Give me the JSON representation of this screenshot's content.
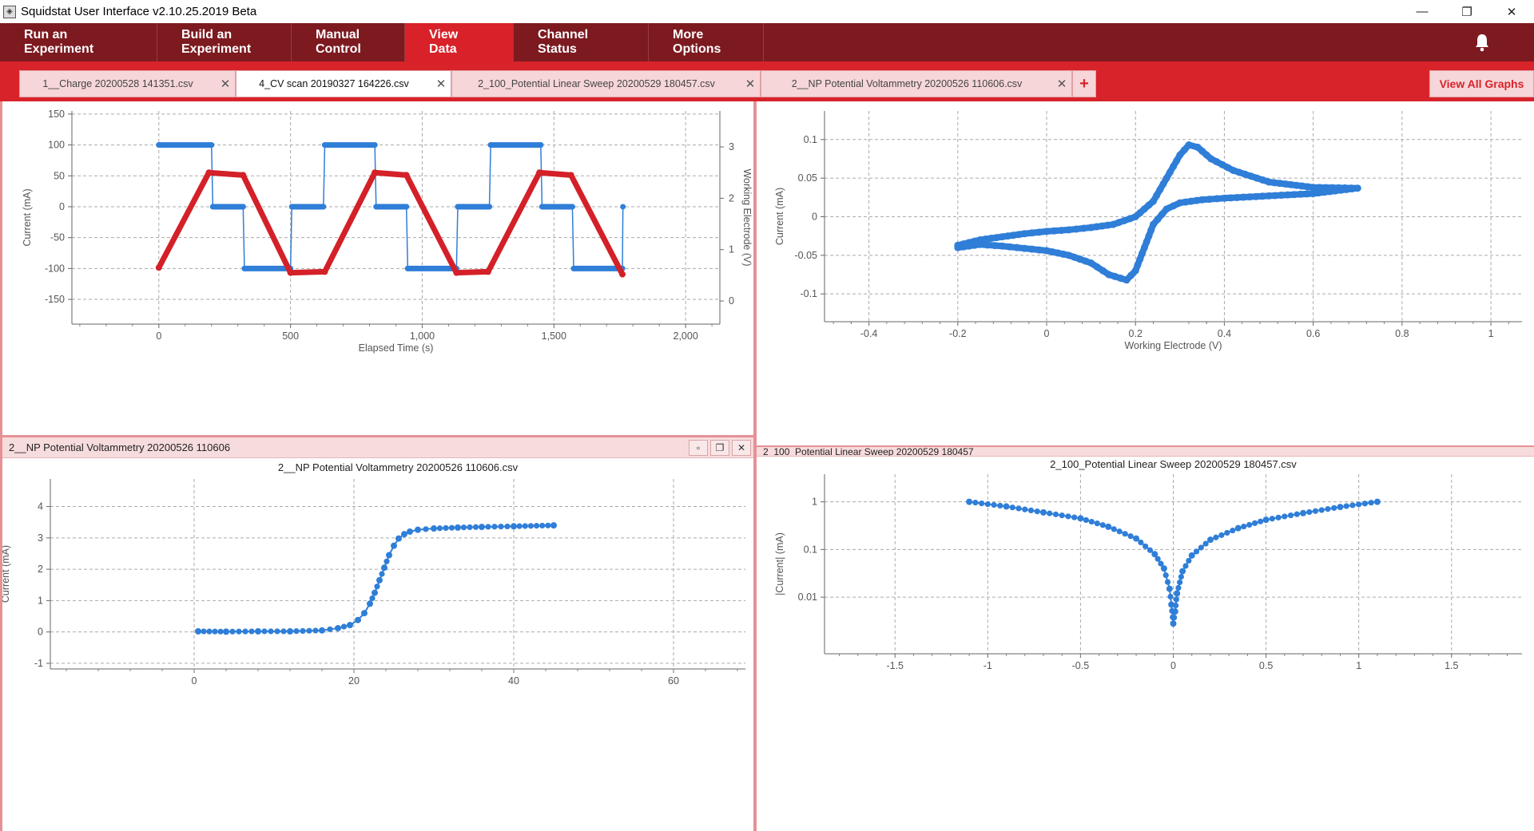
{
  "window": {
    "title": "Squidstat User Interface v2.10.25.2019 Beta",
    "controls": [
      "—",
      "❐",
      "✕"
    ]
  },
  "nav": {
    "items": [
      "Run an Experiment",
      "Build an Experiment",
      "Manual Control",
      "View Data",
      "Channel Status",
      "More Options"
    ],
    "active_index": 3,
    "bell_icon": "bell-icon"
  },
  "tabs": {
    "items": [
      {
        "label": "1__Charge 20200528 141351.csv",
        "active": false
      },
      {
        "label": "4_CV scan 20190327 164226.csv",
        "active": true
      },
      {
        "label": "2_100_Potential Linear Sweep 20200529 180457.csv",
        "active": false
      },
      {
        "label": "2__NP Potential Voltammetry 20200526 110606.csv",
        "active": false
      }
    ],
    "close_glyph": "✕",
    "add_glyph": "+",
    "view_all": "View All Graphs"
  },
  "panels": {
    "bottom_left_header": "2__NP Potential Voltammetry 20200526 110606",
    "bottom_right_header": "2_100_Potential Linear Sweep 20200529 180457"
  },
  "colors": {
    "brand_dark": "#7c1a20",
    "brand_red": "#d8232a",
    "series_blue": "#2f7ed8",
    "series_red": "#d42028"
  },
  "chart_data": [
    {
      "type": "line",
      "title": "",
      "xlabel": "Elapsed Time (s)",
      "ylabel": "Current (mA)",
      "y2label": "Working Electrode (V)",
      "xlim": [
        -330,
        2130
      ],
      "ylim": [
        -190,
        155
      ],
      "y2lim": [
        -0.45,
        3.7
      ],
      "xticks": [
        "0",
        "500",
        "1,000",
        "1,500",
        "2,000"
      ],
      "yticks": [
        "150",
        "100",
        "50",
        "0",
        "-50",
        "-100",
        "-150"
      ],
      "y2ticks": [
        "3",
        "2",
        "1",
        "0"
      ],
      "grid": true,
      "series": [
        {
          "axis": "left",
          "color": "#2f7ed8",
          "x": [
            0,
            200,
            205,
            320,
            325,
            500,
            505,
            625,
            630,
            820,
            825,
            940,
            945,
            1130,
            1135,
            1255,
            1260,
            1450,
            1455,
            1570,
            1575,
            1760,
            1762
          ],
          "values": [
            100,
            100,
            0,
            0,
            -100,
            -100,
            0,
            0,
            100,
            100,
            0,
            0,
            -100,
            -100,
            0,
            0,
            100,
            100,
            0,
            0,
            -100,
            -100,
            0
          ]
        },
        {
          "axis": "right",
          "color": "#d42028",
          "x": [
            0,
            190,
            320,
            500,
            630,
            820,
            940,
            1130,
            1250,
            1445,
            1565,
            1760
          ],
          "values": [
            0.65,
            2.5,
            2.45,
            0.55,
            0.57,
            2.5,
            2.45,
            0.55,
            0.57,
            2.5,
            2.45,
            0.52
          ]
        }
      ]
    },
    {
      "type": "scatter",
      "title": "",
      "xlabel": "Working Electrode (V)",
      "ylabel": "Current (mA)",
      "xlim": [
        -0.5,
        1.07
      ],
      "ylim": [
        -0.136,
        0.137
      ],
      "xticks": [
        "-0.4",
        "-0.2",
        "0",
        "0.2",
        "0.4",
        "0.6",
        "0.8",
        "1"
      ],
      "yticks": [
        "0.1",
        "0.05",
        "0",
        "-0.05",
        "-0.1"
      ],
      "grid": true,
      "series": [
        {
          "color": "#2f7ed8",
          "x": [
            -0.2,
            -0.15,
            -0.1,
            -0.05,
            0.0,
            0.05,
            0.1,
            0.15,
            0.2,
            0.24,
            0.27,
            0.3,
            0.32,
            0.34,
            0.37,
            0.42,
            0.5,
            0.6,
            0.7,
            0.6,
            0.5,
            0.4,
            0.35,
            0.3,
            0.27,
            0.24,
            0.22,
            0.2,
            0.18,
            0.14,
            0.1,
            0.05,
            0.0,
            -0.05,
            -0.1,
            -0.15,
            -0.2
          ],
          "values": [
            -0.037,
            -0.03,
            -0.026,
            -0.022,
            -0.019,
            -0.017,
            -0.014,
            -0.01,
            0.0,
            0.02,
            0.05,
            0.08,
            0.093,
            0.09,
            0.075,
            0.06,
            0.045,
            0.038,
            0.037,
            0.03,
            0.027,
            0.024,
            0.022,
            0.018,
            0.01,
            -0.01,
            -0.04,
            -0.07,
            -0.082,
            -0.075,
            -0.06,
            -0.05,
            -0.044,
            -0.041,
            -0.038,
            -0.036,
            -0.04
          ]
        }
      ]
    },
    {
      "type": "scatter",
      "title": "2__NP Potential Voltammetry 20200526 110606.csv",
      "xlabel": "",
      "ylabel": "Current (mA)",
      "xlim": [
        -18,
        69
      ],
      "ylim": [
        -1.18,
        4.88
      ],
      "xticks": [
        "0",
        "20",
        "40",
        "60"
      ],
      "yticks": [
        "4",
        "3",
        "2",
        "1",
        "0",
        "-1"
      ],
      "grid": true,
      "series": [
        {
          "color": "#2f7ed8",
          "x": [
            0.5,
            4,
            8,
            12,
            16,
            18,
            19.5,
            20.5,
            21.3,
            22,
            22.6,
            23.2,
            23.8,
            24.4,
            25,
            25.6,
            26.3,
            27,
            28,
            30,
            33,
            36,
            40,
            45
          ],
          "values": [
            0.02,
            0.01,
            0.02,
            0.02,
            0.05,
            0.12,
            0.22,
            0.38,
            0.6,
            0.9,
            1.25,
            1.65,
            2.05,
            2.45,
            2.75,
            2.98,
            3.12,
            3.2,
            3.26,
            3.3,
            3.33,
            3.35,
            3.37,
            3.4
          ]
        }
      ]
    },
    {
      "type": "scatter",
      "title": "2_100_Potential Linear Sweep 20200529 180457.csv",
      "xlabel": "",
      "ylabel": "|Current| (mA)",
      "xlim": [
        -1.88,
        1.88
      ],
      "ylim": [
        0.00065,
        3.8
      ],
      "log_y": true,
      "xticks": [
        "-1.5",
        "-1",
        "-0.5",
        "0",
        "0.5",
        "1",
        "1.5"
      ],
      "yticks": [
        "1",
        "0.1",
        "0.01"
      ],
      "grid": true,
      "series": [
        {
          "color": "#2f7ed8",
          "x": [
            -1.1,
            -0.9,
            -0.7,
            -0.5,
            -0.35,
            -0.2,
            -0.1,
            -0.05,
            -0.02,
            -0.01,
            0.0,
            0.01,
            0.02,
            0.05,
            0.1,
            0.2,
            0.35,
            0.5,
            0.7,
            0.9,
            1.1
          ],
          "values": [
            1.0,
            0.8,
            0.6,
            0.45,
            0.3,
            0.17,
            0.08,
            0.04,
            0.015,
            0.007,
            0.0028,
            0.005,
            0.012,
            0.035,
            0.075,
            0.16,
            0.28,
            0.42,
            0.58,
            0.78,
            1.0
          ]
        }
      ]
    }
  ]
}
